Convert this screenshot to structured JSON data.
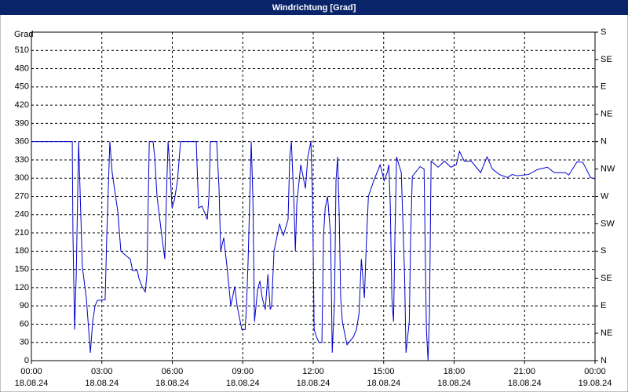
{
  "chart_data": {
    "type": "line",
    "title": "Windrichtung [Grad]",
    "y_label": "Grad",
    "color": "#0000cc",
    "grid": true,
    "xlim": [
      0,
      24
    ],
    "xticks": [
      {
        "value": 0,
        "label": "00:00"
      },
      {
        "value": 3,
        "label": "03:00"
      },
      {
        "value": 6,
        "label": "06:00"
      },
      {
        "value": 9,
        "label": "09:00"
      },
      {
        "value": 12,
        "label": "12:00"
      },
      {
        "value": 15,
        "label": "15:00"
      },
      {
        "value": 18,
        "label": "18:00"
      },
      {
        "value": 21,
        "label": "21:00"
      },
      {
        "value": 24,
        "label": "00:00"
      }
    ],
    "xtick_dates": [
      "18.08.24",
      "18.08.24",
      "18.08.24",
      "18.08.24",
      "18.08.24",
      "18.08.24",
      "18.08.24",
      "18.08.24",
      "19.08.24"
    ],
    "ylim": [
      0,
      540
    ],
    "yticks": [
      0,
      30,
      60,
      90,
      120,
      150,
      180,
      210,
      240,
      270,
      300,
      330,
      360,
      390,
      420,
      450,
      480,
      510
    ],
    "y2lim": [
      0,
      540
    ],
    "y2ticks": [
      {
        "value": 0,
        "label": "N"
      },
      {
        "value": 45,
        "label": "NE"
      },
      {
        "value": 90,
        "label": "E"
      },
      {
        "value": 135,
        "label": "SE"
      },
      {
        "value": 180,
        "label": "S"
      },
      {
        "value": 225,
        "label": "SW"
      },
      {
        "value": 270,
        "label": "W"
      },
      {
        "value": 315,
        "label": "NW"
      },
      {
        "value": 360,
        "label": "N"
      },
      {
        "value": 405,
        "label": "NE"
      },
      {
        "value": 450,
        "label": "E"
      },
      {
        "value": 495,
        "label": "SE"
      },
      {
        "value": 540,
        "label": "S"
      }
    ],
    "x": [
      0,
      1.74,
      1.77,
      1.84,
      1.91,
      2.01,
      2.07,
      2.17,
      2.34,
      2.51,
      2.61,
      2.71,
      2.81,
      3.14,
      3.21,
      3.34,
      3.44,
      3.68,
      3.81,
      4.11,
      4.21,
      4.31,
      4.51,
      4.58,
      4.71,
      4.85,
      4.92,
      5.02,
      5.18,
      5.25,
      5.35,
      5.55,
      5.68,
      5.75,
      5.82,
      5.89,
      5.99,
      6.09,
      6.22,
      6.35,
      7.02,
      7.12,
      7.26,
      7.36,
      7.49,
      7.56,
      7.62,
      7.89,
      7.99,
      8.06,
      8.19,
      8.33,
      8.49,
      8.66,
      8.76,
      8.96,
      9.1,
      9.16,
      9.23,
      9.3,
      9.36,
      9.43,
      9.5,
      9.63,
      9.73,
      9.83,
      9.96,
      10.07,
      10.17,
      10.23,
      10.33,
      10.5,
      10.57,
      10.63,
      10.73,
      10.83,
      10.93,
      11.0,
      11.07,
      11.17,
      11.24,
      11.3,
      11.47,
      11.67,
      11.77,
      11.9,
      11.97,
      12.04,
      12.14,
      12.24,
      12.37,
      12.44,
      12.51,
      12.61,
      12.74,
      12.81,
      12.91,
      12.97,
      13.04,
      13.11,
      13.17,
      13.24,
      13.44,
      13.71,
      13.84,
      13.95,
      14.05,
      14.18,
      14.25,
      14.35,
      14.58,
      14.85,
      15.02,
      15.15,
      15.22,
      15.28,
      15.35,
      15.42,
      15.48,
      15.55,
      15.75,
      15.89,
      15.95,
      16.09,
      16.15,
      16.22,
      16.55,
      16.72,
      16.82,
      16.89,
      16.95,
      17.02,
      17.32,
      17.59,
      17.86,
      18.09,
      18.23,
      18.43,
      18.73,
      19.13,
      19.4,
      19.63,
      19.93,
      20.27,
      20.47,
      20.67,
      21.17,
      21.54,
      21.97,
      22.27,
      22.74,
      22.88,
      23.24,
      23.48,
      23.81,
      23.98
    ],
    "values": [
      360,
      360,
      206,
      51,
      142,
      360,
      283,
      154,
      103,
      13,
      64,
      90,
      99,
      100,
      206,
      360,
      309,
      245,
      180,
      170,
      167,
      148,
      148,
      135,
      122,
      113,
      142,
      360,
      360,
      335,
      270,
      206,
      167,
      270,
      360,
      322,
      251,
      264,
      296,
      360,
      360,
      251,
      254,
      245,
      232,
      270,
      360,
      360,
      283,
      180,
      202,
      154,
      90,
      122,
      90,
      51,
      51,
      90,
      167,
      270,
      360,
      270,
      64,
      116,
      131,
      103,
      84,
      142,
      84,
      90,
      180,
      212,
      225,
      216,
      206,
      219,
      232,
      335,
      360,
      270,
      180,
      258,
      322,
      283,
      335,
      360,
      270,
      51,
      39,
      30,
      30,
      206,
      251,
      270,
      206,
      13,
      103,
      296,
      335,
      232,
      103,
      64,
      26,
      39,
      51,
      77,
      167,
      103,
      180,
      270,
      296,
      322,
      296,
      309,
      322,
      258,
      103,
      64,
      206,
      335,
      309,
      142,
      13,
      64,
      206,
      303,
      319,
      315,
      51,
      0,
      77,
      328,
      318,
      328,
      318,
      322,
      344,
      328,
      328,
      309,
      335,
      315,
      306,
      301,
      306,
      304,
      306,
      314,
      318,
      309,
      309,
      305,
      327,
      326,
      301,
      299
    ]
  }
}
